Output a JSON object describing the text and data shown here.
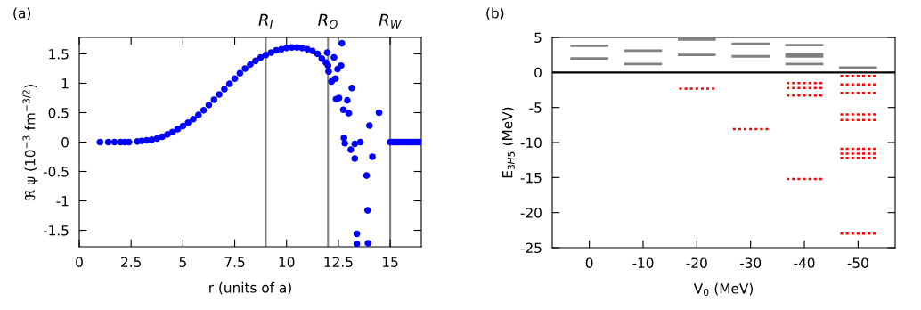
{
  "chart_data": [
    {
      "type": "scatter",
      "title": "(a)",
      "xlabel": "r (units of a)",
      "ylabel": "ℜ ψ (10$^{−3}$ fm$^{−3/2}$)",
      "marker": "circle",
      "grid": false,
      "xlim": [
        0,
        16.5
      ],
      "ylim": [
        -1.78,
        1.78
      ],
      "xticks": [
        0,
        2.5,
        5,
        7.5,
        10,
        12.5,
        15
      ],
      "yticks": [
        -1.5,
        -1,
        -0.5,
        0,
        0.5,
        1,
        1.5
      ],
      "ref_lines": [
        {
          "axis": "x",
          "value": 9,
          "label": "R$_{I}$",
          "color": "#808080"
        },
        {
          "axis": "x",
          "value": 12,
          "label": "R$_{O}$",
          "color": "#808080"
        },
        {
          "axis": "x",
          "value": 15,
          "label": "R$_{W}$",
          "color": "#808080"
        }
      ],
      "series": [
        {
          "color": "#0000ff",
          "x": [
            1,
            1.4,
            1.7,
            2,
            2.2,
            2.4,
            2.8,
            3,
            3.25,
            3.5,
            3.75,
            4,
            4.25,
            4.5,
            4.75,
            5,
            5.25,
            5.5,
            5.75,
            6,
            6.25,
            6.5,
            6.75,
            7,
            7.25,
            7.5,
            7.75,
            8,
            8.25,
            8.5,
            8.75,
            9,
            9.25,
            9.5,
            9.75,
            10,
            10.25,
            10.5,
            10.75,
            11,
            11.25,
            11.5,
            11.7,
            11.9,
            12,
            11.96,
            12.29,
            12.67,
            12.63,
            12.46,
            12.03,
            12.17,
            12.36,
            13.15,
            12.39,
            12.53,
            12.93,
            12.74,
            13,
            14.46,
            14,
            12.77,
            12.81,
            13.1,
            13.29,
            13.56,
            13.29,
            14.14,
            13.86,
            13.91,
            13.39,
            13.39,
            13.93,
            15,
            15.1,
            15.2,
            15.3,
            15.4,
            15.5,
            15.6,
            15.7,
            15.8,
            15.9,
            16,
            16.1,
            16.2,
            16.3,
            16.4,
            16.5
          ],
          "values": [
            0,
            0,
            0,
            0,
            0,
            0,
            0.01,
            0.02,
            0.03,
            0.04,
            0.06,
            0.09,
            0.13,
            0.17,
            0.22,
            0.27,
            0.33,
            0.39,
            0.46,
            0.54,
            0.63,
            0.72,
            0.81,
            0.9,
            0.99,
            1.08,
            1.17,
            1.25,
            1.32,
            1.38,
            1.44,
            1.48,
            1.52,
            1.56,
            1.58,
            1.6,
            1.61,
            1.61,
            1.6,
            1.58,
            1.55,
            1.5,
            1.42,
            1.35,
            1.3,
            1.52,
            1.44,
            1.68,
            1.3,
            1.24,
            1.2,
            1.03,
            1.08,
            0.92,
            0.73,
            0.75,
            0.71,
            0.55,
            0.49,
            0.5,
            0.28,
            0.07,
            -0.02,
            -0.13,
            -0.03,
            0,
            -0.28,
            -0.25,
            -0.57,
            -1.16,
            -1.56,
            -1.73,
            -1.72,
            0,
            0,
            0,
            0,
            0,
            0,
            0,
            0,
            0,
            0,
            0,
            0,
            0,
            0,
            0,
            0
          ]
        }
      ]
    },
    {
      "type": "line",
      "title": "(b)",
      "xlabel": "V$_{0}$ (MeV)",
      "ylabel": "E$_{3H5}$ (MeV)",
      "grid": false,
      "xlim": [
        6.9,
        -56.9
      ],
      "xticks": [
        0,
        -10,
        -20,
        -30,
        -40,
        -50
      ],
      "ylim": [
        -25,
        5
      ],
      "yticks": [
        -25,
        -20,
        -15,
        -10,
        -5,
        0,
        5
      ],
      "ref_lines": [
        {
          "axis": "y",
          "value": 0,
          "color": "#000000"
        }
      ],
      "series": [
        {
          "color": "#808080",
          "line_style": "solid",
          "x": [
            3.3,
            -3.3
          ],
          "values": [
            3.8,
            3.8
          ]
        },
        {
          "color": "#808080",
          "line_style": "solid",
          "x": [
            3.3,
            -3.3
          ],
          "values": [
            2.0,
            2.0
          ]
        },
        {
          "color": "#808080",
          "line_style": "solid",
          "x": [
            -6.7,
            -13.3
          ],
          "values": [
            3.1,
            3.1
          ]
        },
        {
          "color": "#808080",
          "line_style": "solid",
          "x": [
            -6.7,
            -13.3
          ],
          "values": [
            1.2,
            1.2
          ]
        },
        {
          "color": "#808080",
          "line_style": "solid",
          "x": [
            -16.7,
            -23.3
          ],
          "values": [
            4.7,
            4.7
          ]
        },
        {
          "color": "#808080",
          "line_style": "solid",
          "x": [
            -16.7,
            -23.3
          ],
          "values": [
            2.5,
            2.5
          ]
        },
        {
          "color": "#808080",
          "line_style": "solid",
          "x": [
            -26.7,
            -33.3
          ],
          "values": [
            4.1,
            4.1
          ]
        },
        {
          "color": "#808080",
          "line_style": "solid",
          "x": [
            -26.7,
            -33.3
          ],
          "values": [
            2.3,
            2.3
          ]
        },
        {
          "color": "#808080",
          "line_style": "solid",
          "x": [
            -36.7,
            -43.3
          ],
          "values": [
            3.9,
            3.9
          ]
        },
        {
          "color": "#808080",
          "line_style": "solid",
          "x": [
            -36.7,
            -43.3
          ],
          "values": [
            2.6,
            2.6
          ]
        },
        {
          "color": "#808080",
          "line_style": "solid",
          "x": [
            -36.7,
            -43.3
          ],
          "values": [
            2.3,
            2.3
          ]
        },
        {
          "color": "#808080",
          "line_style": "solid",
          "x": [
            -36.7,
            -43.3
          ],
          "values": [
            1.2,
            1.2
          ]
        },
        {
          "color": "#808080",
          "line_style": "solid",
          "x": [
            -46.7,
            -53.3
          ],
          "values": [
            0.7,
            0.7
          ]
        },
        {
          "color": "#ff0000",
          "line_style": "dotted",
          "x": [
            -16.7,
            -23.3
          ],
          "values": [
            -2.3,
            -2.3
          ]
        },
        {
          "color": "#ff0000",
          "line_style": "dotted",
          "x": [
            -26.7,
            -33.3
          ],
          "values": [
            -8.1,
            -8.1
          ]
        },
        {
          "color": "#ff0000",
          "line_style": "dotted",
          "x": [
            -36.7,
            -43.3
          ],
          "values": [
            -1.5,
            -1.5
          ]
        },
        {
          "color": "#ff0000",
          "line_style": "dotted",
          "x": [
            -36.7,
            -43.3
          ],
          "values": [
            -2.2,
            -2.2
          ]
        },
        {
          "color": "#ff0000",
          "line_style": "dotted",
          "x": [
            -36.7,
            -43.3
          ],
          "values": [
            -3.3,
            -3.3
          ]
        },
        {
          "color": "#ff0000",
          "line_style": "dotted",
          "x": [
            -36.7,
            -43.3
          ],
          "values": [
            -15.2,
            -15.2
          ]
        },
        {
          "color": "#ff0000",
          "line_style": "dotted",
          "x": [
            -46.7,
            -53.3
          ],
          "values": [
            -0.5,
            -0.5
          ]
        },
        {
          "color": "#ff0000",
          "line_style": "dotted",
          "x": [
            -46.7,
            -53.3
          ],
          "values": [
            -1.7,
            -1.7
          ]
        },
        {
          "color": "#ff0000",
          "line_style": "dotted",
          "x": [
            -46.7,
            -53.3
          ],
          "values": [
            -2.9,
            -2.9
          ]
        },
        {
          "color": "#ff0000",
          "line_style": "dotted",
          "x": [
            -46.7,
            -53.3
          ],
          "values": [
            -6.0,
            -6.0
          ]
        },
        {
          "color": "#ff0000",
          "line_style": "dotted",
          "x": [
            -46.7,
            -53.3
          ],
          "values": [
            -6.8,
            -6.8
          ]
        },
        {
          "color": "#ff0000",
          "line_style": "dotted",
          "x": [
            -46.7,
            -53.3
          ],
          "values": [
            -10.9,
            -10.9
          ]
        },
        {
          "color": "#ff0000",
          "line_style": "dotted",
          "x": [
            -46.7,
            -53.3
          ],
          "values": [
            -11.6,
            -11.6
          ]
        },
        {
          "color": "#ff0000",
          "line_style": "dotted",
          "x": [
            -46.7,
            -53.3
          ],
          "values": [
            -12.2,
            -12.2
          ]
        },
        {
          "color": "#ff0000",
          "line_style": "dotted",
          "x": [
            -46.7,
            -53.3
          ],
          "values": [
            -23.0,
            -23.0
          ]
        }
      ]
    }
  ]
}
